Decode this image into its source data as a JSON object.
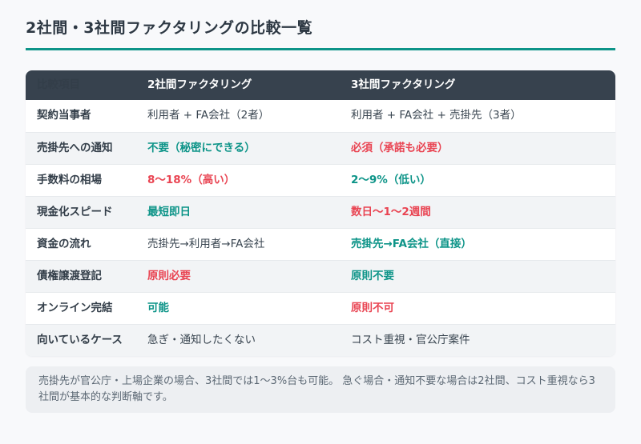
{
  "title": "2社間・3社間ファクタリングの比較一覧",
  "colors": {
    "accent": "#0D9488",
    "negative": "#E94452",
    "header_bg": "#37424E"
  },
  "table": {
    "headers": {
      "item": "比較項目",
      "two_party": "2社間ファクタリング",
      "three_party": "3社間ファクタリング"
    },
    "rows": [
      {
        "item": "契約当事者",
        "two_party": {
          "text": "利用者 + FA会社（2者）",
          "tone": "neutral"
        },
        "three_party": {
          "text": "利用者 + FA会社 + 売掛先（3者）",
          "tone": "neutral"
        }
      },
      {
        "item": "売掛先への通知",
        "two_party": {
          "text": "不要（秘密にできる）",
          "tone": "good"
        },
        "three_party": {
          "text": "必須（承諾も必要）",
          "tone": "bad"
        }
      },
      {
        "item": "手数料の相場",
        "two_party": {
          "text": "8〜18%（高い）",
          "tone": "bad"
        },
        "three_party": {
          "text": "2〜9%（低い）",
          "tone": "good"
        }
      },
      {
        "item": "現金化スピード",
        "two_party": {
          "text": "最短即日",
          "tone": "good"
        },
        "three_party": {
          "text": "数日〜1〜2週間",
          "tone": "bad"
        }
      },
      {
        "item": "資金の流れ",
        "two_party": {
          "text": "売掛先→利用者→FA会社",
          "tone": "neutral"
        },
        "three_party": {
          "text": "売掛先→FA会社（直接）",
          "tone": "good"
        }
      },
      {
        "item": "債権譲渡登記",
        "two_party": {
          "text": "原則必要",
          "tone": "bad"
        },
        "three_party": {
          "text": "原則不要",
          "tone": "good"
        }
      },
      {
        "item": "オンライン完結",
        "two_party": {
          "text": "可能",
          "tone": "good"
        },
        "three_party": {
          "text": "原則不可",
          "tone": "bad"
        }
      },
      {
        "item": "向いているケース",
        "two_party": {
          "text": "急ぎ・通知したくない",
          "tone": "neutral"
        },
        "three_party": {
          "text": "コスト重視・官公庁案件",
          "tone": "neutral"
        }
      }
    ]
  },
  "note": "売掛先が官公庁・上場企業の場合、3社間では1〜3%台も可能。 急ぐ場合・通知不要な場合は2社間、コスト重視なら3社間が基本的な判断軸です。"
}
